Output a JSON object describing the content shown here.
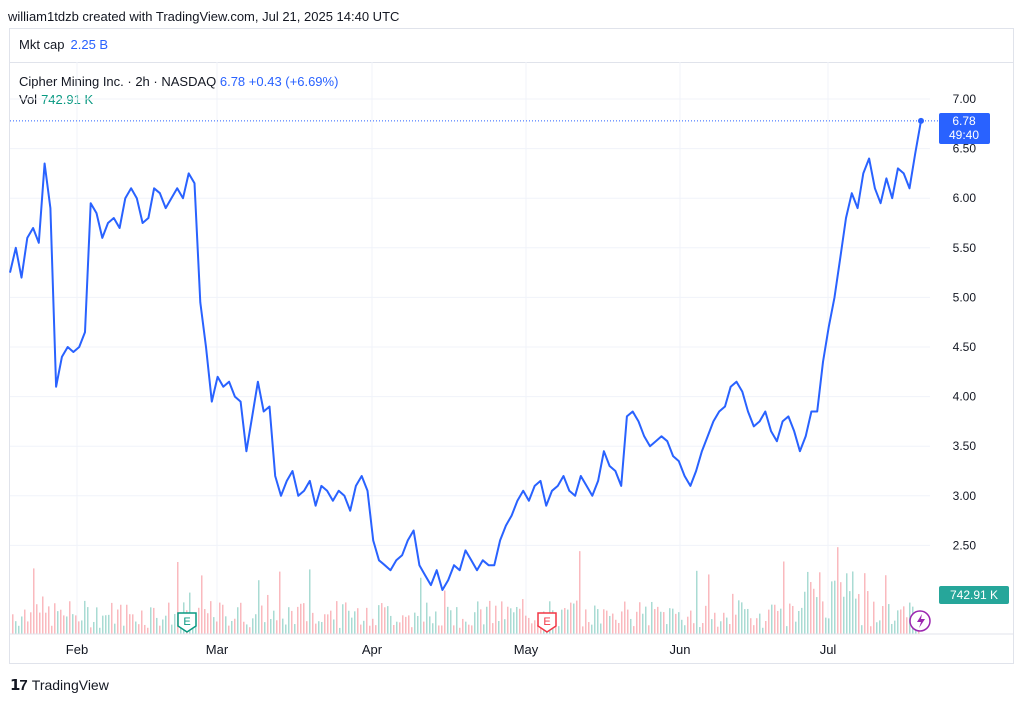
{
  "header": {
    "credit": "william1tdzb created with TradingView.com, Jul 21, 2025 14:40 UTC"
  },
  "mkt_cap": {
    "label": "Mkt cap",
    "value": "2.25 B"
  },
  "legend": {
    "symbol": "Cipher Mining Inc. · 2h · NASDAQ",
    "last": "6.78",
    "change": "+0.43 (+6.69%)",
    "vol_label": "Vol",
    "vol_value": "742.91 K"
  },
  "price_tag": {
    "price": "6.78",
    "countdown": "49:40"
  },
  "volume_tag": "742.91 K",
  "footer": {
    "brand": "TradingView"
  },
  "colors": {
    "line": "#2962ff",
    "up": "#089981",
    "down": "#f23645",
    "grid": "#f0f3fa"
  },
  "chart_data": {
    "type": "line",
    "series": [
      {
        "values": [
          5.25,
          5.5,
          5.2,
          5.6,
          5.7,
          5.55,
          6.35,
          5.9,
          4.1,
          4.4,
          4.5,
          4.45,
          4.5,
          4.65,
          5.95,
          5.85,
          5.6,
          5.75,
          5.8,
          5.7,
          6.0,
          6.1,
          6.0,
          5.75,
          5.8,
          6.1,
          6.05,
          5.9,
          6.0,
          6.1,
          6.0,
          6.25,
          6.15,
          4.95,
          4.5,
          3.95,
          4.2,
          4.1,
          4.15,
          4.0,
          3.95,
          3.45,
          3.8,
          4.15,
          3.85,
          3.9,
          3.2,
          3.0,
          3.15,
          3.25,
          3.0,
          3.05,
          3.15,
          2.9,
          3.1,
          3.05,
          2.95,
          3.05,
          3.0,
          2.85,
          3.1,
          3.2,
          3.05,
          2.55,
          2.35,
          2.3,
          2.25,
          2.35,
          2.4,
          2.55,
          2.65,
          2.3,
          2.2,
          2.1,
          2.25,
          2.05,
          2.15,
          2.3,
          2.25,
          2.45,
          2.35,
          2.25,
          2.35,
          2.3,
          2.3,
          2.55,
          2.7,
          2.8,
          2.95,
          3.05,
          2.95,
          3.1,
          3.15,
          2.9,
          3.05,
          3.1,
          3.2,
          3.05,
          3.0,
          3.2,
          3.1,
          3.0,
          3.15,
          3.45,
          3.3,
          3.25,
          3.1,
          3.8,
          3.85,
          3.75,
          3.6,
          3.5,
          3.55,
          3.6,
          3.55,
          3.4,
          3.35,
          3.2,
          3.1,
          3.25,
          3.45,
          3.6,
          3.75,
          3.85,
          3.9,
          4.1,
          4.15,
          4.05,
          3.85,
          3.7,
          3.75,
          3.85,
          3.65,
          3.55,
          3.75,
          3.8,
          3.65,
          3.45,
          3.6,
          3.85,
          3.85,
          4.35,
          4.7,
          5.0,
          5.4,
          5.8,
          6.05,
          5.9,
          6.25,
          6.4,
          6.1,
          5.95,
          6.2,
          6.0,
          6.3,
          6.25,
          6.1,
          6.45,
          6.78
        ],
        "dates": [
          "2025-01-21",
          "2025-07-21"
        ]
      }
    ],
    "volume_last": 742910,
    "x_ticks": [
      "Feb",
      "Mar",
      "Apr",
      "May",
      "Jun",
      "Jul"
    ],
    "y_ticks": [
      "7.00",
      "6.50",
      "6.00",
      "5.50",
      "5.00",
      "4.50",
      "4.00",
      "3.50",
      "3.00",
      "2.50"
    ],
    "ylim": [
      1.9,
      7.1
    ],
    "last_price": 6.78,
    "earnings_markers": [
      "E",
      "E"
    ],
    "grid": true
  }
}
